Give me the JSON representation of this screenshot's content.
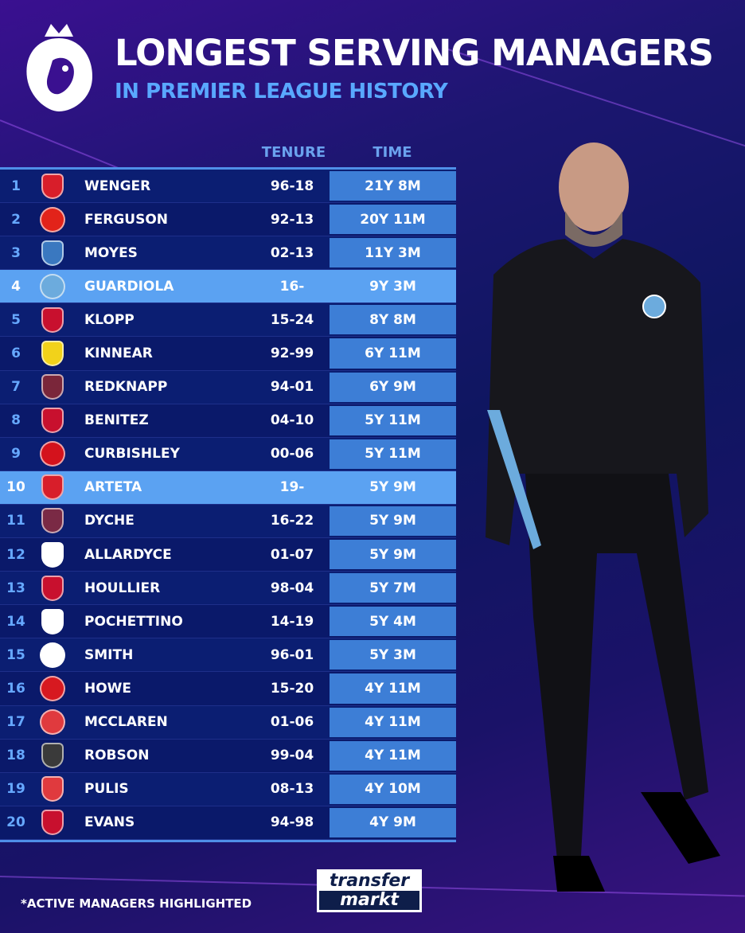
{
  "header": {
    "title": "LONGEST SERVING MANAGERS",
    "subtitle": "IN PREMIER LEAGUE HISTORY"
  },
  "columns": {
    "tenure": "TENURE",
    "time": "TIME"
  },
  "colors": {
    "accent": "#59a8ff",
    "row": "#0b1e72",
    "time_cell": "#3d7ed6",
    "active_row": "#5ba2f2"
  },
  "rows": [
    {
      "rank": "1",
      "name": "WENGER",
      "tenure": "96-18",
      "time": "21Y 8M",
      "active": false,
      "crest": "#d81e2a",
      "shape": "shield"
    },
    {
      "rank": "2",
      "name": "FERGUSON",
      "tenure": "92-13",
      "time": "20Y 11M",
      "active": false,
      "crest": "#e2231a",
      "shape": "round"
    },
    {
      "rank": "3",
      "name": "MOYES",
      "tenure": "02-13",
      "time": "11Y 3M",
      "active": false,
      "crest": "#3a78c0",
      "shape": "shield"
    },
    {
      "rank": "4",
      "name": "GUARDIOLA",
      "tenure": "16-",
      "time": "9Y 3M",
      "active": true,
      "crest": "#6cabdd",
      "shape": "round"
    },
    {
      "rank": "5",
      "name": "KLOPP",
      "tenure": "15-24",
      "time": "8Y 8M",
      "active": false,
      "crest": "#c8102e",
      "shape": "shield"
    },
    {
      "rank": "6",
      "name": "KINNEAR",
      "tenure": "92-99",
      "time": "6Y 11M",
      "active": false,
      "crest": "#f2d21a",
      "shape": "shield"
    },
    {
      "rank": "7",
      "name": "REDKNAPP",
      "tenure": "94-01",
      "time": "6Y 9M",
      "active": false,
      "crest": "#7a263a",
      "shape": "shield"
    },
    {
      "rank": "8",
      "name": "BENITEZ",
      "tenure": "04-10",
      "time": "5Y 11M",
      "active": false,
      "crest": "#c8102e",
      "shape": "shield"
    },
    {
      "rank": "9",
      "name": "CURBISHLEY",
      "tenure": "00-06",
      "time": "5Y 11M",
      "active": false,
      "crest": "#d4121c",
      "shape": "round"
    },
    {
      "rank": "10",
      "name": "ARTETA",
      "tenure": "19-",
      "time": "5Y 9M",
      "active": true,
      "crest": "#d81e2a",
      "shape": "shield"
    },
    {
      "rank": "11",
      "name": "DYCHE",
      "tenure": "16-22",
      "time": "5Y 9M",
      "active": false,
      "crest": "#7a2a45",
      "shape": "shield"
    },
    {
      "rank": "12",
      "name": "ALLARDYCE",
      "tenure": "01-07",
      "time": "5Y 9M",
      "active": false,
      "crest": "#ffffff",
      "shape": "shield"
    },
    {
      "rank": "13",
      "name": "HOULLIER",
      "tenure": "98-04",
      "time": "5Y 7M",
      "active": false,
      "crest": "#c8102e",
      "shape": "shield"
    },
    {
      "rank": "14",
      "name": "POCHETTINO",
      "tenure": "14-19",
      "time": "5Y 4M",
      "active": false,
      "crest": "#ffffff",
      "shape": "shield"
    },
    {
      "rank": "15",
      "name": "SMITH",
      "tenure": "96-01",
      "time": "5Y 3M",
      "active": false,
      "crest": "#ffffff",
      "shape": "round"
    },
    {
      "rank": "16",
      "name": "HOWE",
      "tenure": "15-20",
      "time": "4Y 11M",
      "active": false,
      "crest": "#d71920",
      "shape": "round"
    },
    {
      "rank": "17",
      "name": "MCCLAREN",
      "tenure": "01-06",
      "time": "4Y 11M",
      "active": false,
      "crest": "#e03a3e",
      "shape": "round"
    },
    {
      "rank": "18",
      "name": "ROBSON",
      "tenure": "99-04",
      "time": "4Y 11M",
      "active": false,
      "crest": "#3a3a3a",
      "shape": "shield"
    },
    {
      "rank": "19",
      "name": "PULIS",
      "tenure": "08-13",
      "time": "4Y 10M",
      "active": false,
      "crest": "#e03a3e",
      "shape": "shield"
    },
    {
      "rank": "20",
      "name": "EVANS",
      "tenure": "94-98",
      "time": "4Y 9M",
      "active": false,
      "crest": "#c8102e",
      "shape": "shield"
    }
  ],
  "footer": {
    "note": "*ACTIVE MANAGERS HIGHLIGHTED",
    "brand_top": "transfer",
    "brand_bottom": "markt"
  }
}
